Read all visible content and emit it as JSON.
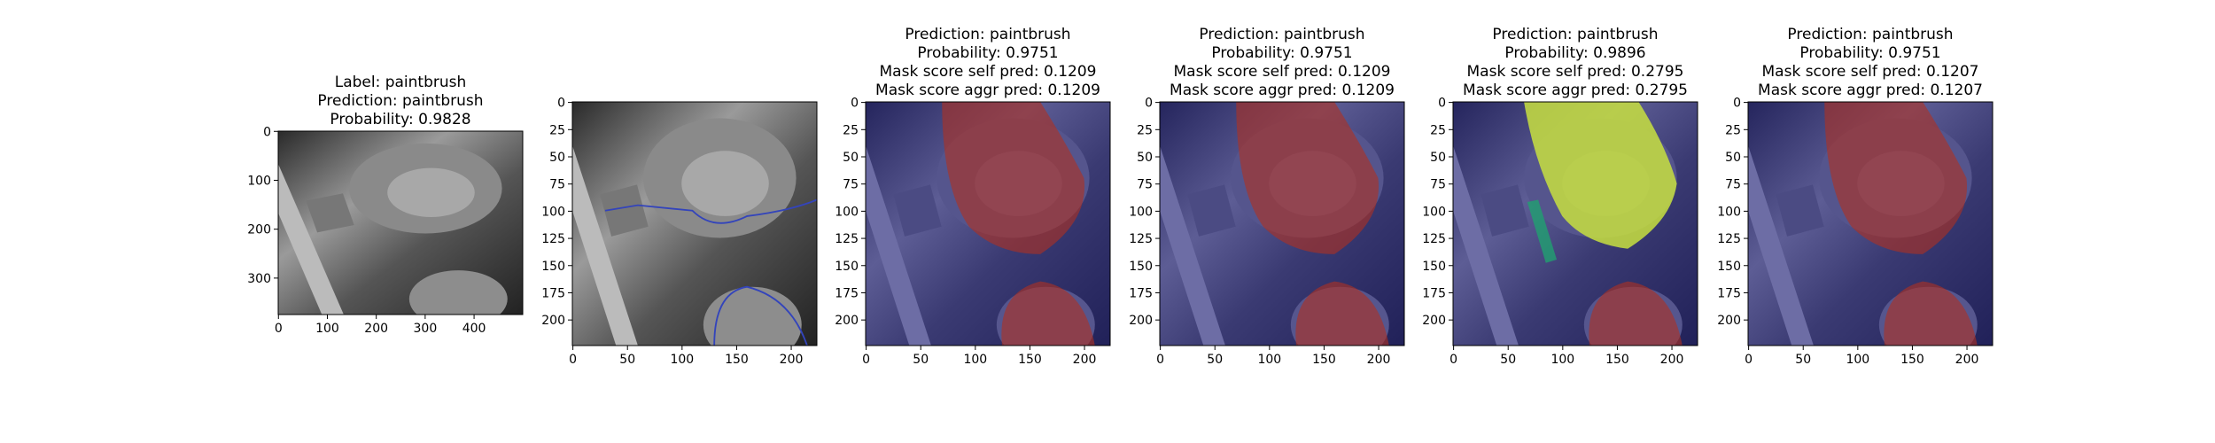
{
  "panels": [
    {
      "title": [
        "Label: paintbrush",
        "Prediction: paintbrush",
        "Probability: 0.9828"
      ],
      "xlim": [
        -0.5,
        499.5
      ],
      "ylim": [
        374.5,
        -0.5
      ],
      "xticks": [
        0,
        100,
        200,
        300,
        400
      ],
      "yticks": [
        0,
        100,
        200,
        300
      ]
    },
    {
      "title": [],
      "xlim": [
        -0.5,
        223.5
      ],
      "ylim": [
        223.5,
        -0.5
      ],
      "xticks": [
        0,
        50,
        100,
        150,
        200
      ],
      "yticks": [
        0,
        25,
        50,
        75,
        100,
        125,
        150,
        175,
        200
      ]
    },
    {
      "title": [
        "Prediction: paintbrush",
        "Probability: 0.9751",
        "Mask score self pred: 0.1209",
        "Mask score aggr pred: 0.1209"
      ],
      "xlim": [
        -0.5,
        223.5
      ],
      "ylim": [
        223.5,
        -0.5
      ],
      "xticks": [
        0,
        50,
        100,
        150,
        200
      ],
      "yticks": [
        0,
        25,
        50,
        75,
        100,
        125,
        150,
        175,
        200
      ]
    },
    {
      "title": [
        "Prediction: paintbrush",
        "Probability: 0.9751",
        "Mask score self pred: 0.1209",
        "Mask score aggr pred: 0.1209"
      ],
      "xlim": [
        -0.5,
        223.5
      ],
      "ylim": [
        223.5,
        -0.5
      ],
      "xticks": [
        0,
        50,
        100,
        150,
        200
      ],
      "yticks": [
        0,
        25,
        50,
        75,
        100,
        125,
        150,
        175,
        200
      ]
    },
    {
      "title": [
        "Prediction: paintbrush",
        "Probability: 0.9896",
        "Mask score self pred: 0.2795",
        "Mask score aggr pred: 0.2795"
      ],
      "xlim": [
        -0.5,
        223.5
      ],
      "ylim": [
        223.5,
        -0.5
      ],
      "xticks": [
        0,
        50,
        100,
        150,
        200
      ],
      "yticks": [
        0,
        25,
        50,
        75,
        100,
        125,
        150,
        175,
        200
      ]
    },
    {
      "title": [
        "Prediction: paintbrush",
        "Probability: 0.9751",
        "Mask score self pred: 0.1207",
        "Mask score aggr pred: 0.1207"
      ],
      "xlim": [
        -0.5,
        223.5
      ],
      "ylim": [
        223.5,
        -0.5
      ],
      "xticks": [
        0,
        50,
        100,
        150,
        200
      ],
      "yticks": [
        0,
        25,
        50,
        75,
        100,
        125,
        150,
        175,
        200
      ]
    }
  ]
}
